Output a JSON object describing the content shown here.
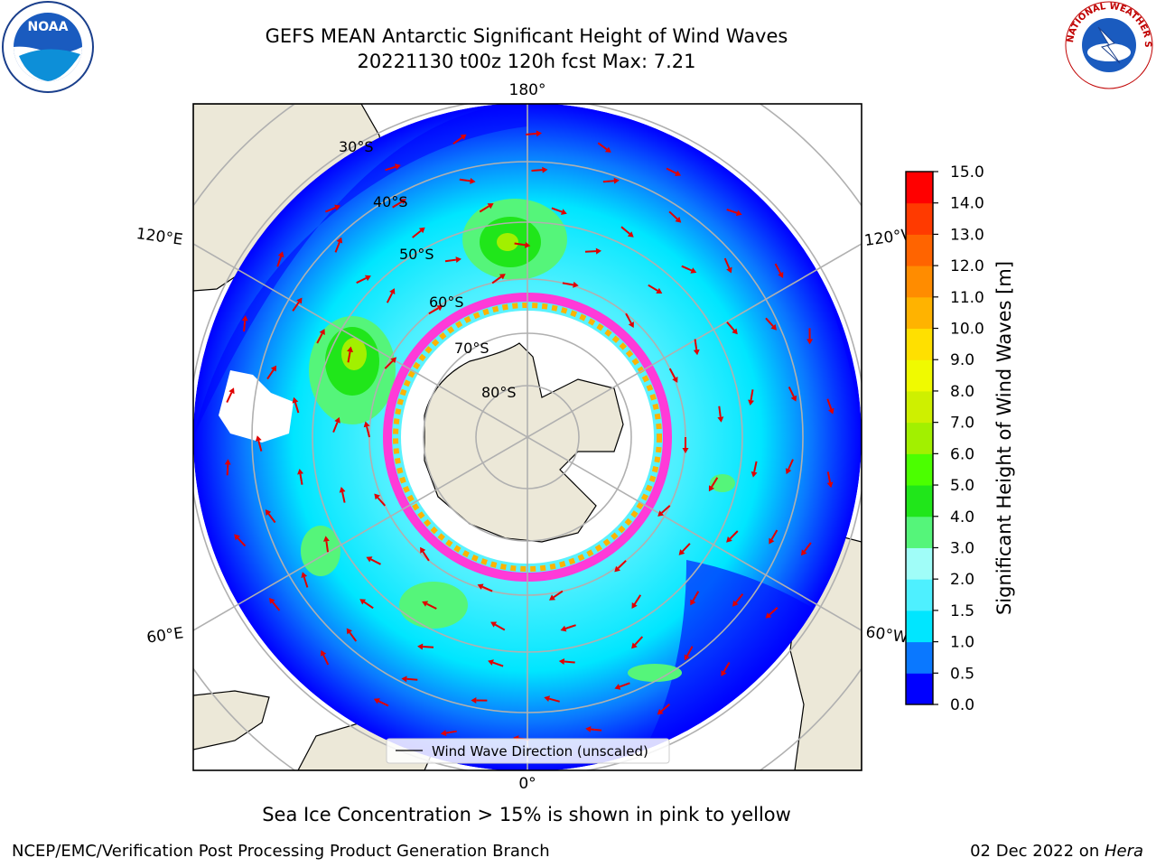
{
  "title": {
    "line1": "GEFS MEAN Antarctic Significant Height of Wind Waves",
    "line2": "20221130 t00z 120h fcst   Max: 7.21"
  },
  "logos": {
    "left": "noara-logo",
    "right": "national-weather-service-logo",
    "left_text": "NOAA",
    "right_text": "NATIONAL WEATHER SERVICE"
  },
  "map": {
    "projection": "south-polar-stereographic",
    "latitude_labels": [
      "30°S",
      "40°S",
      "50°S",
      "60°S",
      "70°S",
      "80°S"
    ],
    "longitude_labels": {
      "top": "180°",
      "bottom": "0°",
      "upper_left": "120°E",
      "lower_left": "60°E",
      "upper_right": "120°W",
      "lower_right": "60°W"
    },
    "legend_label": "Wind Wave Direction (unscaled)"
  },
  "colorbar": {
    "label": "Significant Height of Wind Waves [m]",
    "ticks": [
      "0.0",
      "0.5",
      "1.0",
      "1.5",
      "2.0",
      "3.0",
      "4.0",
      "5.0",
      "6.0",
      "7.0",
      "8.0",
      "9.0",
      "10.0",
      "11.0",
      "12.0",
      "13.0",
      "14.0",
      "15.0"
    ],
    "colors": [
      "#0000ff",
      "#0a78ff",
      "#00e6ff",
      "#4ef0ff",
      "#a0fdf8",
      "#55f57a",
      "#20e61a",
      "#4bff00",
      "#a2f000",
      "#cef000",
      "#f0fa00",
      "#ffe000",
      "#ffb300",
      "#ff8c00",
      "#ff6400",
      "#ff3a00",
      "#ff0000"
    ]
  },
  "caption": "Sea Ice Concentration > 15% is shown in pink to yellow",
  "footer": {
    "left": "NCEP/EMC/Verification Post Processing Product Generation Branch",
    "right_date": "02 Dec 2022 on ",
    "right_machine": "Hera"
  }
}
